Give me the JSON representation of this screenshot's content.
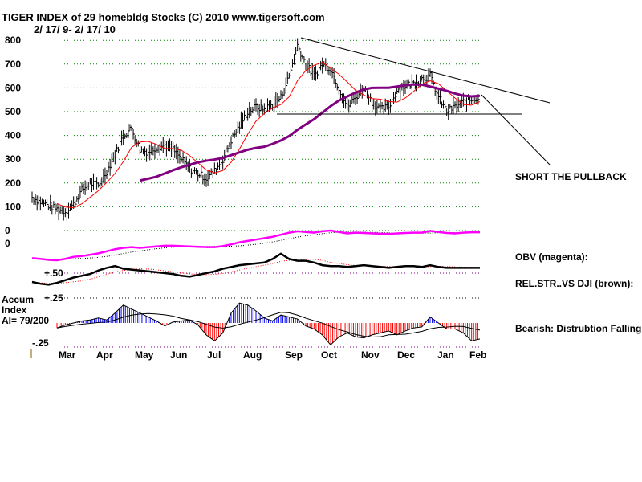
{
  "chart_data": {
    "type": "line",
    "title": "TIGER INDEX of  29 homebldg Stocks  (C) 2010  www.tigersoft.com",
    "subtitle": "2/ 17/ 9- 2/ 17/ 10",
    "y_ticks": [
      "800",
      "700",
      "600",
      "500",
      "400",
      "300",
      "200",
      "100",
      "0"
    ],
    "ylim": [
      0,
      800
    ],
    "x_ticks": [
      "Mar",
      "Apr",
      "May",
      "Jun",
      "Jul",
      "Aug",
      "Sep",
      "Oct",
      "Nov",
      "Dec",
      "Jan",
      "Feb"
    ],
    "price_weekly": [
      140,
      120,
      105,
      90,
      80,
      110,
      170,
      200,
      190,
      250,
      320,
      400,
      430,
      340,
      330,
      350,
      360,
      340,
      300,
      260,
      240,
      220,
      250,
      300,
      380,
      440,
      500,
      520,
      510,
      530,
      560,
      650,
      780,
      700,
      650,
      700,
      680,
      600,
      520,
      560,
      600,
      540,
      510,
      520,
      590,
      610,
      620,
      640,
      650,
      560,
      500,
      520,
      540,
      550,
      560
    ],
    "obv": [
      20,
      18,
      15,
      14,
      18,
      24,
      26,
      30,
      34,
      40,
      46,
      50,
      52,
      50,
      52,
      54,
      56,
      56,
      55,
      54,
      53,
      52,
      52,
      55,
      60,
      66,
      70,
      74,
      78,
      82,
      88,
      94,
      98,
      96,
      94,
      98,
      100,
      96,
      92,
      94,
      93,
      92,
      91,
      90,
      92,
      93,
      94,
      94,
      99,
      96,
      93,
      92,
      94,
      95,
      95
    ],
    "rel_str": [
      0.4,
      0.38,
      0.37,
      0.39,
      0.42,
      0.45,
      0.47,
      0.49,
      0.53,
      0.56,
      0.58,
      0.55,
      0.54,
      0.53,
      0.52,
      0.51,
      0.5,
      0.49,
      0.47,
      0.46,
      0.48,
      0.5,
      0.52,
      0.55,
      0.57,
      0.59,
      0.6,
      0.61,
      0.62,
      0.66,
      0.72,
      0.66,
      0.64,
      0.64,
      0.62,
      0.59,
      0.58,
      0.58,
      0.57,
      0.58,
      0.59,
      0.58,
      0.57,
      0.56,
      0.57,
      0.58,
      0.58,
      0.57,
      0.59,
      0.57,
      0.56,
      0.56,
      0.56,
      0.56,
      0.56
    ],
    "accum_index": [
      null,
      null,
      null,
      -0.05,
      -0.02,
      0.0,
      0.02,
      0.03,
      0.05,
      0.03,
      0.1,
      0.18,
      0.14,
      0.1,
      0.06,
      0.02,
      -0.03,
      0.01,
      0.02,
      0.03,
      -0.02,
      -0.12,
      -0.18,
      -0.1,
      0.1,
      0.2,
      0.18,
      0.12,
      0.05,
      0.02,
      0.08,
      0.06,
      0.04,
      -0.03,
      -0.06,
      -0.12,
      -0.22,
      -0.14,
      -0.1,
      -0.14,
      -0.15,
      -0.12,
      -0.1,
      -0.08,
      -0.12,
      -0.08,
      -0.05,
      -0.04,
      0.06,
      0.0,
      -0.06,
      -0.06,
      -0.1,
      -0.18,
      -0.16
    ],
    "panels": {
      "obv_zero": "0",
      "obv_label": "OBV (magenta):",
      "rs_tick": "+.50",
      "rs_label": "REL.STR..VS DJI (brown):",
      "ai_top": "+.25",
      "ai_bottom": "-.25",
      "ai_title1": "Accum",
      "ai_title2": "Index",
      "ai_value": "AI= 79/200",
      "ai_label": "Bearish: Distrubtion Falling."
    },
    "annotation": "SHORT THE PULLBACK",
    "colors": {
      "price": "#000000",
      "ma_short": "#ff0000",
      "ma_long": "#800080",
      "obv": "#ff00ff",
      "grid": "#008000",
      "ai_pos": "#0000ff",
      "ai_neg": "#ff0000"
    }
  }
}
